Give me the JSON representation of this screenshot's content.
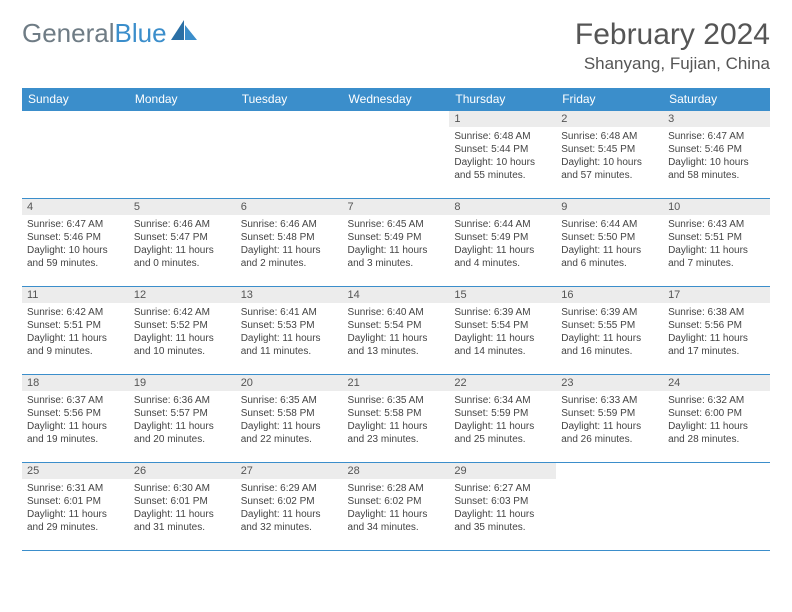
{
  "brand": {
    "part1": "General",
    "part2": "Blue"
  },
  "title": "February 2024",
  "location": "Shanyang, Fujian, China",
  "colors": {
    "header_bg": "#3b8ecb",
    "header_text": "#ffffff",
    "border": "#3b8ecb",
    "daynum_bg": "#ececec",
    "text": "#444444",
    "brand_gray": "#6f7c85",
    "brand_blue": "#3b8ecb",
    "background": "#ffffff"
  },
  "typography": {
    "title_fontsize": 30,
    "location_fontsize": 17,
    "header_fontsize": 12,
    "cell_fontsize": 10,
    "daynum_fontsize": 11
  },
  "weekdays": [
    "Sunday",
    "Monday",
    "Tuesday",
    "Wednesday",
    "Thursday",
    "Friday",
    "Saturday"
  ],
  "weeks": [
    [
      null,
      null,
      null,
      null,
      {
        "n": "1",
        "sr": "Sunrise: 6:48 AM",
        "ss": "Sunset: 5:44 PM",
        "d1": "Daylight: 10 hours",
        "d2": "and 55 minutes."
      },
      {
        "n": "2",
        "sr": "Sunrise: 6:48 AM",
        "ss": "Sunset: 5:45 PM",
        "d1": "Daylight: 10 hours",
        "d2": "and 57 minutes."
      },
      {
        "n": "3",
        "sr": "Sunrise: 6:47 AM",
        "ss": "Sunset: 5:46 PM",
        "d1": "Daylight: 10 hours",
        "d2": "and 58 minutes."
      }
    ],
    [
      {
        "n": "4",
        "sr": "Sunrise: 6:47 AM",
        "ss": "Sunset: 5:46 PM",
        "d1": "Daylight: 10 hours",
        "d2": "and 59 minutes."
      },
      {
        "n": "5",
        "sr": "Sunrise: 6:46 AM",
        "ss": "Sunset: 5:47 PM",
        "d1": "Daylight: 11 hours",
        "d2": "and 0 minutes."
      },
      {
        "n": "6",
        "sr": "Sunrise: 6:46 AM",
        "ss": "Sunset: 5:48 PM",
        "d1": "Daylight: 11 hours",
        "d2": "and 2 minutes."
      },
      {
        "n": "7",
        "sr": "Sunrise: 6:45 AM",
        "ss": "Sunset: 5:49 PM",
        "d1": "Daylight: 11 hours",
        "d2": "and 3 minutes."
      },
      {
        "n": "8",
        "sr": "Sunrise: 6:44 AM",
        "ss": "Sunset: 5:49 PM",
        "d1": "Daylight: 11 hours",
        "d2": "and 4 minutes."
      },
      {
        "n": "9",
        "sr": "Sunrise: 6:44 AM",
        "ss": "Sunset: 5:50 PM",
        "d1": "Daylight: 11 hours",
        "d2": "and 6 minutes."
      },
      {
        "n": "10",
        "sr": "Sunrise: 6:43 AM",
        "ss": "Sunset: 5:51 PM",
        "d1": "Daylight: 11 hours",
        "d2": "and 7 minutes."
      }
    ],
    [
      {
        "n": "11",
        "sr": "Sunrise: 6:42 AM",
        "ss": "Sunset: 5:51 PM",
        "d1": "Daylight: 11 hours",
        "d2": "and 9 minutes."
      },
      {
        "n": "12",
        "sr": "Sunrise: 6:42 AM",
        "ss": "Sunset: 5:52 PM",
        "d1": "Daylight: 11 hours",
        "d2": "and 10 minutes."
      },
      {
        "n": "13",
        "sr": "Sunrise: 6:41 AM",
        "ss": "Sunset: 5:53 PM",
        "d1": "Daylight: 11 hours",
        "d2": "and 11 minutes."
      },
      {
        "n": "14",
        "sr": "Sunrise: 6:40 AM",
        "ss": "Sunset: 5:54 PM",
        "d1": "Daylight: 11 hours",
        "d2": "and 13 minutes."
      },
      {
        "n": "15",
        "sr": "Sunrise: 6:39 AM",
        "ss": "Sunset: 5:54 PM",
        "d1": "Daylight: 11 hours",
        "d2": "and 14 minutes."
      },
      {
        "n": "16",
        "sr": "Sunrise: 6:39 AM",
        "ss": "Sunset: 5:55 PM",
        "d1": "Daylight: 11 hours",
        "d2": "and 16 minutes."
      },
      {
        "n": "17",
        "sr": "Sunrise: 6:38 AM",
        "ss": "Sunset: 5:56 PM",
        "d1": "Daylight: 11 hours",
        "d2": "and 17 minutes."
      }
    ],
    [
      {
        "n": "18",
        "sr": "Sunrise: 6:37 AM",
        "ss": "Sunset: 5:56 PM",
        "d1": "Daylight: 11 hours",
        "d2": "and 19 minutes."
      },
      {
        "n": "19",
        "sr": "Sunrise: 6:36 AM",
        "ss": "Sunset: 5:57 PM",
        "d1": "Daylight: 11 hours",
        "d2": "and 20 minutes."
      },
      {
        "n": "20",
        "sr": "Sunrise: 6:35 AM",
        "ss": "Sunset: 5:58 PM",
        "d1": "Daylight: 11 hours",
        "d2": "and 22 minutes."
      },
      {
        "n": "21",
        "sr": "Sunrise: 6:35 AM",
        "ss": "Sunset: 5:58 PM",
        "d1": "Daylight: 11 hours",
        "d2": "and 23 minutes."
      },
      {
        "n": "22",
        "sr": "Sunrise: 6:34 AM",
        "ss": "Sunset: 5:59 PM",
        "d1": "Daylight: 11 hours",
        "d2": "and 25 minutes."
      },
      {
        "n": "23",
        "sr": "Sunrise: 6:33 AM",
        "ss": "Sunset: 5:59 PM",
        "d1": "Daylight: 11 hours",
        "d2": "and 26 minutes."
      },
      {
        "n": "24",
        "sr": "Sunrise: 6:32 AM",
        "ss": "Sunset: 6:00 PM",
        "d1": "Daylight: 11 hours",
        "d2": "and 28 minutes."
      }
    ],
    [
      {
        "n": "25",
        "sr": "Sunrise: 6:31 AM",
        "ss": "Sunset: 6:01 PM",
        "d1": "Daylight: 11 hours",
        "d2": "and 29 minutes."
      },
      {
        "n": "26",
        "sr": "Sunrise: 6:30 AM",
        "ss": "Sunset: 6:01 PM",
        "d1": "Daylight: 11 hours",
        "d2": "and 31 minutes."
      },
      {
        "n": "27",
        "sr": "Sunrise: 6:29 AM",
        "ss": "Sunset: 6:02 PM",
        "d1": "Daylight: 11 hours",
        "d2": "and 32 minutes."
      },
      {
        "n": "28",
        "sr": "Sunrise: 6:28 AM",
        "ss": "Sunset: 6:02 PM",
        "d1": "Daylight: 11 hours",
        "d2": "and 34 minutes."
      },
      {
        "n": "29",
        "sr": "Sunrise: 6:27 AM",
        "ss": "Sunset: 6:03 PM",
        "d1": "Daylight: 11 hours",
        "d2": "and 35 minutes."
      },
      null,
      null
    ]
  ]
}
